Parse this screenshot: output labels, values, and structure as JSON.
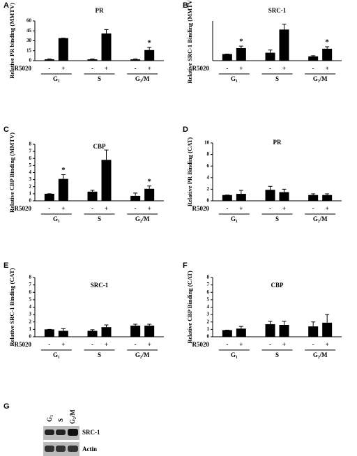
{
  "chart_data": [
    {
      "type": "bar",
      "panel": "A",
      "title": "PR",
      "y_label": "Relative PR binding (MMTV)",
      "row_label": "R5020",
      "groups": [
        "G₁",
        "S",
        "G₂/M"
      ],
      "categories": [
        "-",
        "+",
        "-",
        "+",
        "-",
        "+"
      ],
      "values": [
        2,
        34,
        2,
        41,
        2,
        16
      ],
      "errors": [
        0.5,
        0,
        0.5,
        6,
        0.5,
        4
      ],
      "annotations": [
        null,
        null,
        null,
        null,
        null,
        "*"
      ],
      "color": "#000000",
      "ylim": [
        0,
        60
      ],
      "yticks": [
        0,
        15,
        30,
        45,
        60
      ]
    },
    {
      "type": "bar",
      "panel": "B",
      "title": "SRC-1",
      "y_label": "Relative SRC-1 Binding (MMTV)",
      "row_label": "R5020",
      "groups": [
        "G₁",
        "S",
        "G₂/M"
      ],
      "categories": [
        "-",
        "+",
        "-",
        "+",
        "-",
        "+"
      ],
      "values": [
        1,
        1.9,
        1.2,
        4.7,
        0.65,
        1.8
      ],
      "errors": [
        0,
        0.3,
        0.4,
        0.8,
        0.1,
        0.3
      ],
      "annotations": [
        null,
        "*",
        null,
        null,
        null,
        "*"
      ],
      "color": "#000000",
      "ylim": [
        0,
        6
      ]
    },
    {
      "type": "bar",
      "panel": "C",
      "title": "CBP",
      "y_label": "Relative CBP Binding (MMTV)",
      "row_label": "R5020",
      "groups": [
        "G₁",
        "S",
        "G₂/M"
      ],
      "categories": [
        "-",
        "+",
        "-",
        "+",
        "-",
        "+"
      ],
      "values": [
        1,
        3.1,
        1.3,
        5.8,
        0.7,
        1.7
      ],
      "errors": [
        0,
        0.6,
        0.2,
        1.4,
        0.4,
        0.4
      ],
      "annotations": [
        null,
        "*",
        null,
        null,
        null,
        "*"
      ],
      "color": "#000000",
      "ylim": [
        0,
        8
      ],
      "yticks": [
        0,
        1,
        2,
        3,
        4,
        5,
        6,
        7,
        8
      ]
    },
    {
      "type": "bar",
      "panel": "D",
      "title": "PR",
      "y_label": "Relative PR Binding (CAT)",
      "row_label": "R5020",
      "groups": [
        "G₁",
        "S",
        "G₂/M"
      ],
      "categories": [
        "-",
        "+",
        "-",
        "+",
        "-",
        "+"
      ],
      "values": [
        1,
        1.2,
        1.9,
        1.5,
        1,
        1
      ],
      "errors": [
        0,
        0.6,
        0.6,
        0.5,
        0.2,
        0.2
      ],
      "annotations": [
        null,
        null,
        null,
        null,
        null,
        null
      ],
      "color": "#000000",
      "ylim": [
        0,
        10
      ],
      "yticks": [
        0,
        2,
        4,
        6,
        8,
        10
      ]
    },
    {
      "type": "bar",
      "panel": "E",
      "title": "SRC-1",
      "y_label": "Relative SRC-1 Binding (CAT)",
      "row_label": "R5020",
      "groups": [
        "G₁",
        "S",
        "G₂/M"
      ],
      "categories": [
        "-",
        "+",
        "-",
        "+",
        "-",
        "+"
      ],
      "values": [
        1,
        0.8,
        0.8,
        1.3,
        1.5,
        1.5
      ],
      "errors": [
        0,
        0.3,
        0.15,
        0.3,
        0.2,
        0.2
      ],
      "annotations": [
        null,
        null,
        null,
        null,
        null,
        null
      ],
      "color": "#000000",
      "ylim": [
        0,
        8
      ],
      "yticks": [
        0,
        1,
        2,
        3,
        4,
        5,
        6,
        7,
        8
      ]
    },
    {
      "type": "bar",
      "panel": "F",
      "title": "CBP",
      "y_label": "Relative CBP Binding (CAT)",
      "row_label": "R5020",
      "groups": [
        "G₁",
        "S",
        "G₂/M"
      ],
      "categories": [
        "-",
        "+",
        "-",
        "+",
        "-",
        "+"
      ],
      "values": [
        0.9,
        1.1,
        1.7,
        1.6,
        1.4,
        1.9
      ],
      "errors": [
        0,
        0.3,
        0.4,
        0.5,
        0.6,
        1.1
      ],
      "annotations": [
        null,
        null,
        null,
        null,
        null,
        null
      ],
      "color": "#000000",
      "ylim": [
        0,
        8
      ],
      "yticks": [
        0,
        1,
        2,
        3,
        4,
        5,
        6,
        7,
        8
      ]
    }
  ],
  "blot": {
    "panel": "G",
    "lanes": [
      "G₁",
      "S",
      "G₂/M"
    ],
    "rows": [
      "SRC-1",
      "Actin"
    ]
  }
}
